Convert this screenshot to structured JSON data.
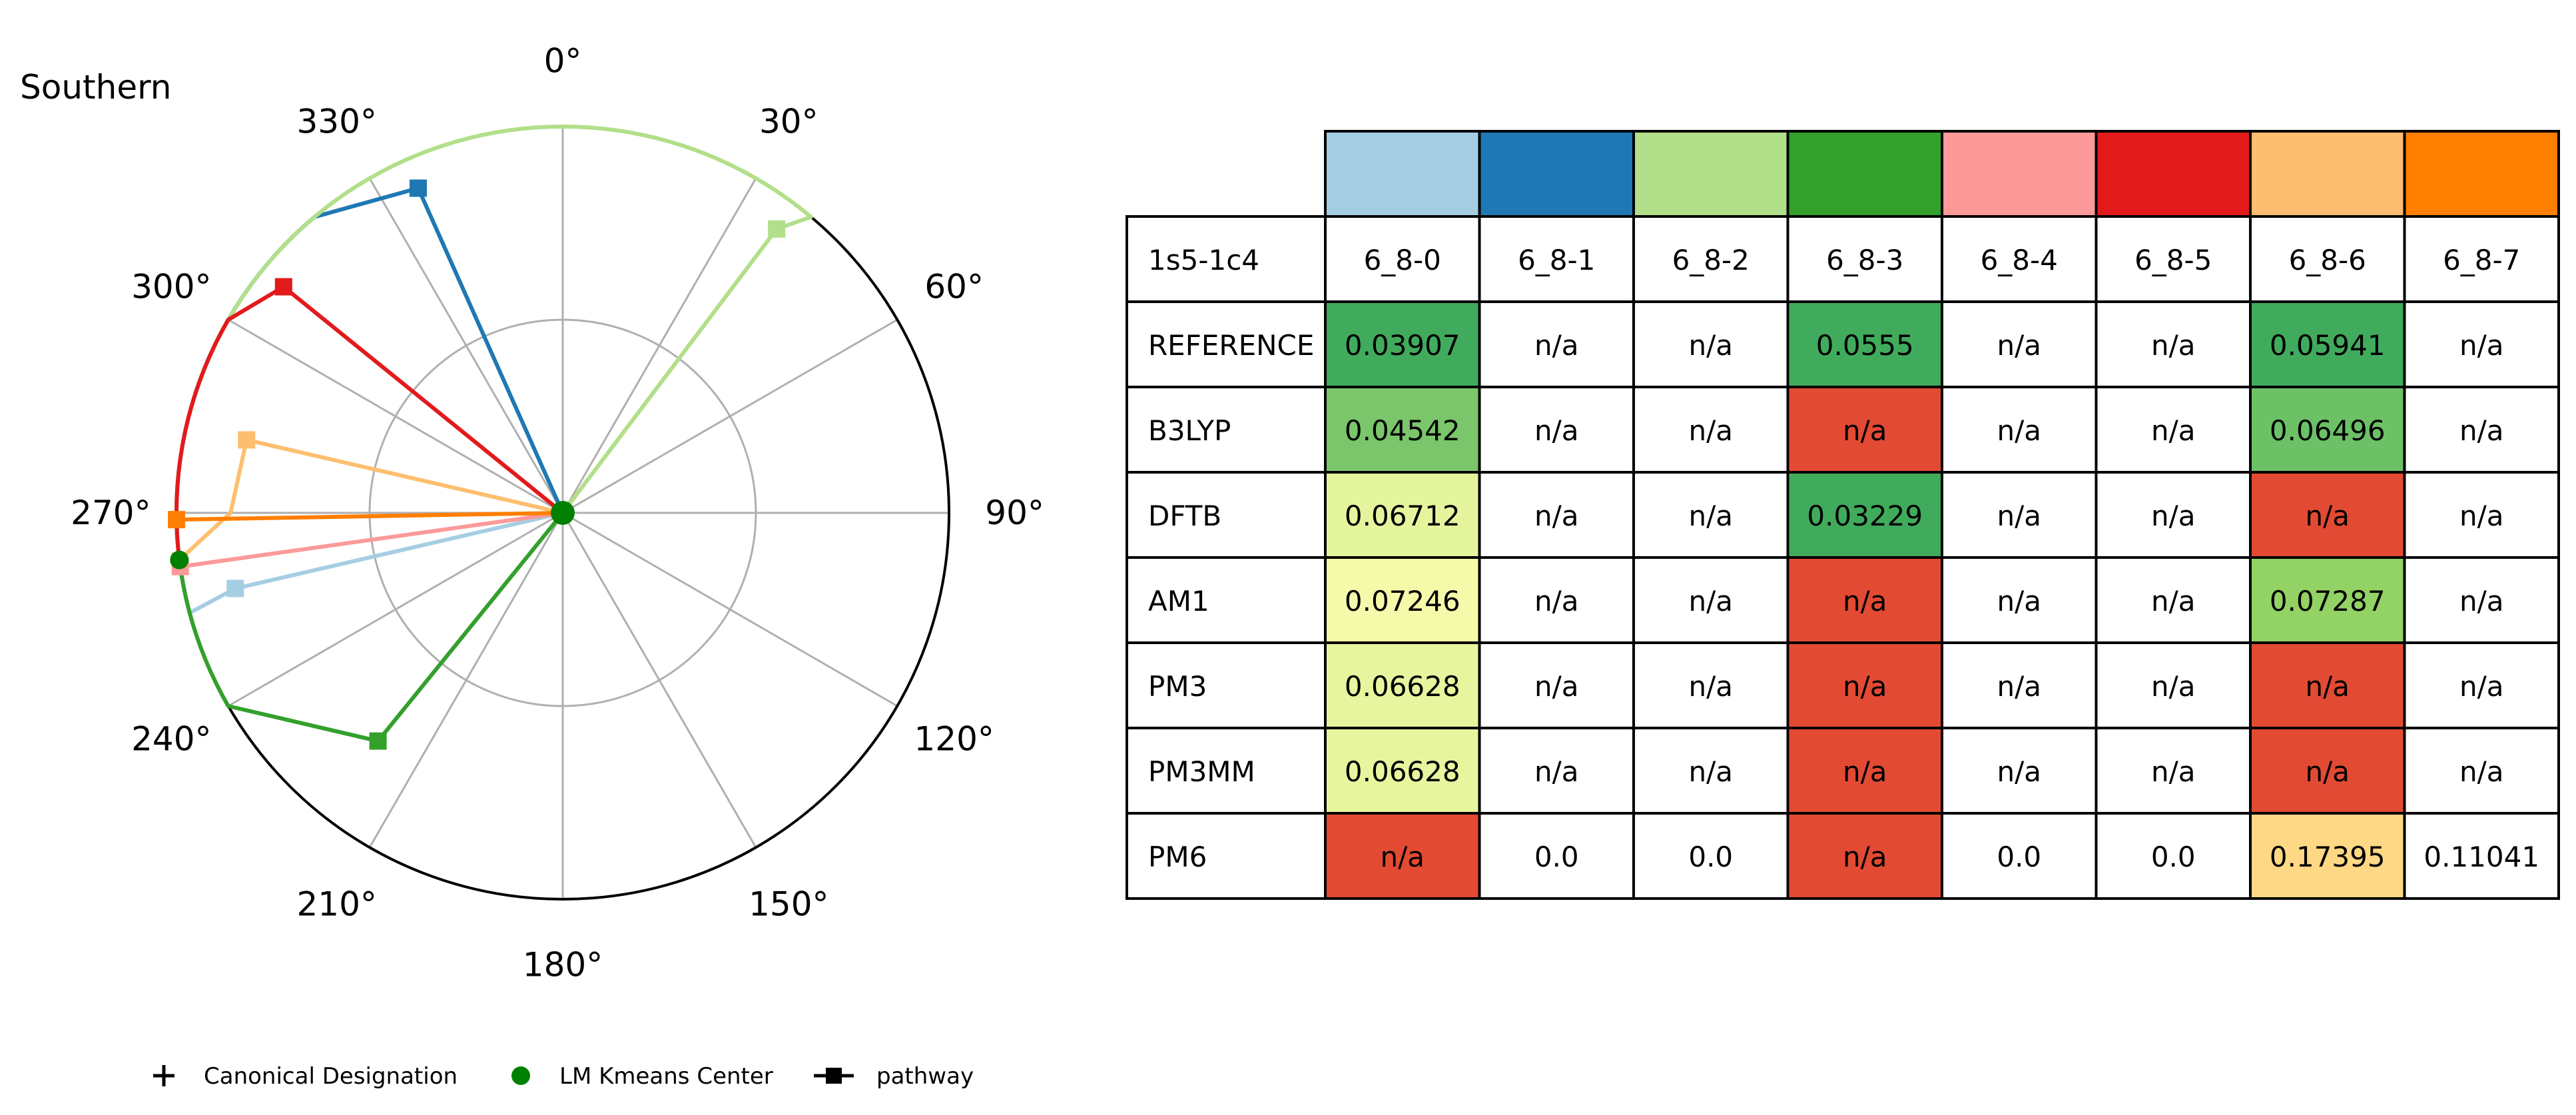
{
  "chart_data": [
    {
      "type": "polar-line",
      "title": "Southern",
      "theta_direction": "clockwise",
      "theta_zero": "top",
      "angle_ticks": [
        "0°",
        "30°",
        "60°",
        "90°",
        "120°",
        "150°",
        "180°",
        "210°",
        "240°",
        "270°",
        "300°",
        "330°"
      ],
      "rlim": [
        0,
        1
      ],
      "grid": true,
      "center": {
        "theta": 0,
        "r": 0,
        "color": "#008000",
        "label": "LM Kmeans Center"
      },
      "series": [
        {
          "color": "#a6cee3",
          "path": [
            [
              0,
              0
            ],
            [
              257,
              0.87
            ],
            [
              255,
              1.0
            ],
            [
              263,
              1.0
            ]
          ]
        },
        {
          "color": "#1f78b4",
          "path": [
            [
              0,
              0
            ],
            [
              336,
              0.92
            ],
            [
              320,
              1.0
            ],
            [
              300,
              1.0
            ],
            [
              263,
              1.0
            ]
          ]
        },
        {
          "color": "#b2df8a",
          "path": [
            [
              0,
              0
            ],
            [
              37,
              0.92
            ],
            [
              40,
              1.0
            ],
            [
              0,
              1.0
            ],
            [
              300,
              1.0
            ],
            [
              263,
              1.0
            ]
          ]
        },
        {
          "color": "#33a02c",
          "path": [
            [
              0,
              0
            ],
            [
              219,
              0.76
            ],
            [
              240,
              1.0
            ],
            [
              263,
              1.0
            ]
          ]
        },
        {
          "color": "#fb9a99",
          "path": [
            [
              0,
              0
            ],
            [
              262,
              1.0
            ],
            [
              263,
              1.0
            ]
          ]
        },
        {
          "color": "#e31a1c",
          "path": [
            [
              0,
              0
            ],
            [
              309,
              0.93
            ],
            [
              300,
              1.0
            ],
            [
              270,
              1.0
            ],
            [
              263,
              1.0
            ]
          ]
        },
        {
          "color": "#fdbf6f",
          "path": [
            [
              0,
              0
            ],
            [
              283,
              0.84
            ],
            [
              270,
              0.86
            ],
            [
              263,
              1.0
            ]
          ]
        },
        {
          "color": "#ff7f00",
          "path": [
            [
              0,
              0
            ],
            [
              269,
              1.0
            ]
          ]
        }
      ],
      "legend": {
        "position": "bottom",
        "items": [
          {
            "label": "Canonical Designation",
            "marker": "plus",
            "color": "#000000"
          },
          {
            "label": "LM Kmeans Center",
            "marker": "circle",
            "color": "#008000"
          },
          {
            "label": "pathway",
            "marker": "line-square",
            "color": "#000000"
          }
        ]
      }
    },
    {
      "type": "table",
      "corner": "1s5-1c4",
      "column_colors": [
        "#a6cee3",
        "#1f78b4",
        "#b2df8a",
        "#33a02c",
        "#fb9a99",
        "#e31a1c",
        "#fdbf6f",
        "#ff7f00"
      ],
      "columns": [
        "6_8-0",
        "6_8-1",
        "6_8-2",
        "6_8-3",
        "6_8-4",
        "6_8-5",
        "6_8-6",
        "6_8-7"
      ],
      "rows": [
        {
          "label": "REFERENCE",
          "cells": [
            "0.03907",
            "n/a",
            "n/a",
            "0.0555",
            "n/a",
            "n/a",
            "0.05941",
            "n/a"
          ],
          "fills": [
            "#41ab5d",
            "",
            "",
            "#41ab5d",
            "",
            "",
            "#41ab5d",
            ""
          ]
        },
        {
          "label": "B3LYP",
          "cells": [
            "0.04542",
            "n/a",
            "n/a",
            "n/a",
            "n/a",
            "n/a",
            "0.06496",
            "n/a"
          ],
          "fills": [
            "#7bc66b",
            "",
            "",
            "#e34a33",
            "",
            "",
            "#6cc166",
            ""
          ]
        },
        {
          "label": "DFTB",
          "cells": [
            "0.06712",
            "n/a",
            "n/a",
            "0.03229",
            "n/a",
            "n/a",
            "n/a",
            "n/a"
          ],
          "fills": [
            "#e5f59e",
            "",
            "",
            "#41ab5d",
            "",
            "",
            "#e34a33",
            ""
          ]
        },
        {
          "label": "AM1",
          "cells": [
            "0.07246",
            "n/a",
            "n/a",
            "n/a",
            "n/a",
            "n/a",
            "0.07287",
            "n/a"
          ],
          "fills": [
            "#f5faaa",
            "",
            "",
            "#e34a33",
            "",
            "",
            "#93d264",
            ""
          ]
        },
        {
          "label": "PM3",
          "cells": [
            "0.06628",
            "n/a",
            "n/a",
            "n/a",
            "n/a",
            "n/a",
            "n/a",
            "n/a"
          ],
          "fills": [
            "#e7f59e",
            "",
            "",
            "#e34a33",
            "",
            "",
            "#e34a33",
            ""
          ]
        },
        {
          "label": "PM3MM",
          "cells": [
            "0.06628",
            "n/a",
            "n/a",
            "n/a",
            "n/a",
            "n/a",
            "n/a",
            "n/a"
          ],
          "fills": [
            "#e7f59e",
            "",
            "",
            "#e34a33",
            "",
            "",
            "#e34a33",
            ""
          ]
        },
        {
          "label": "PM6",
          "cells": [
            "n/a",
            "0.0",
            "0.0",
            "n/a",
            "0.0",
            "0.0",
            "0.17395",
            "0.11041"
          ],
          "fills": [
            "#e34a33",
            "",
            "",
            "#e34a33",
            "",
            "",
            "#fed884",
            ""
          ]
        }
      ]
    }
  ]
}
